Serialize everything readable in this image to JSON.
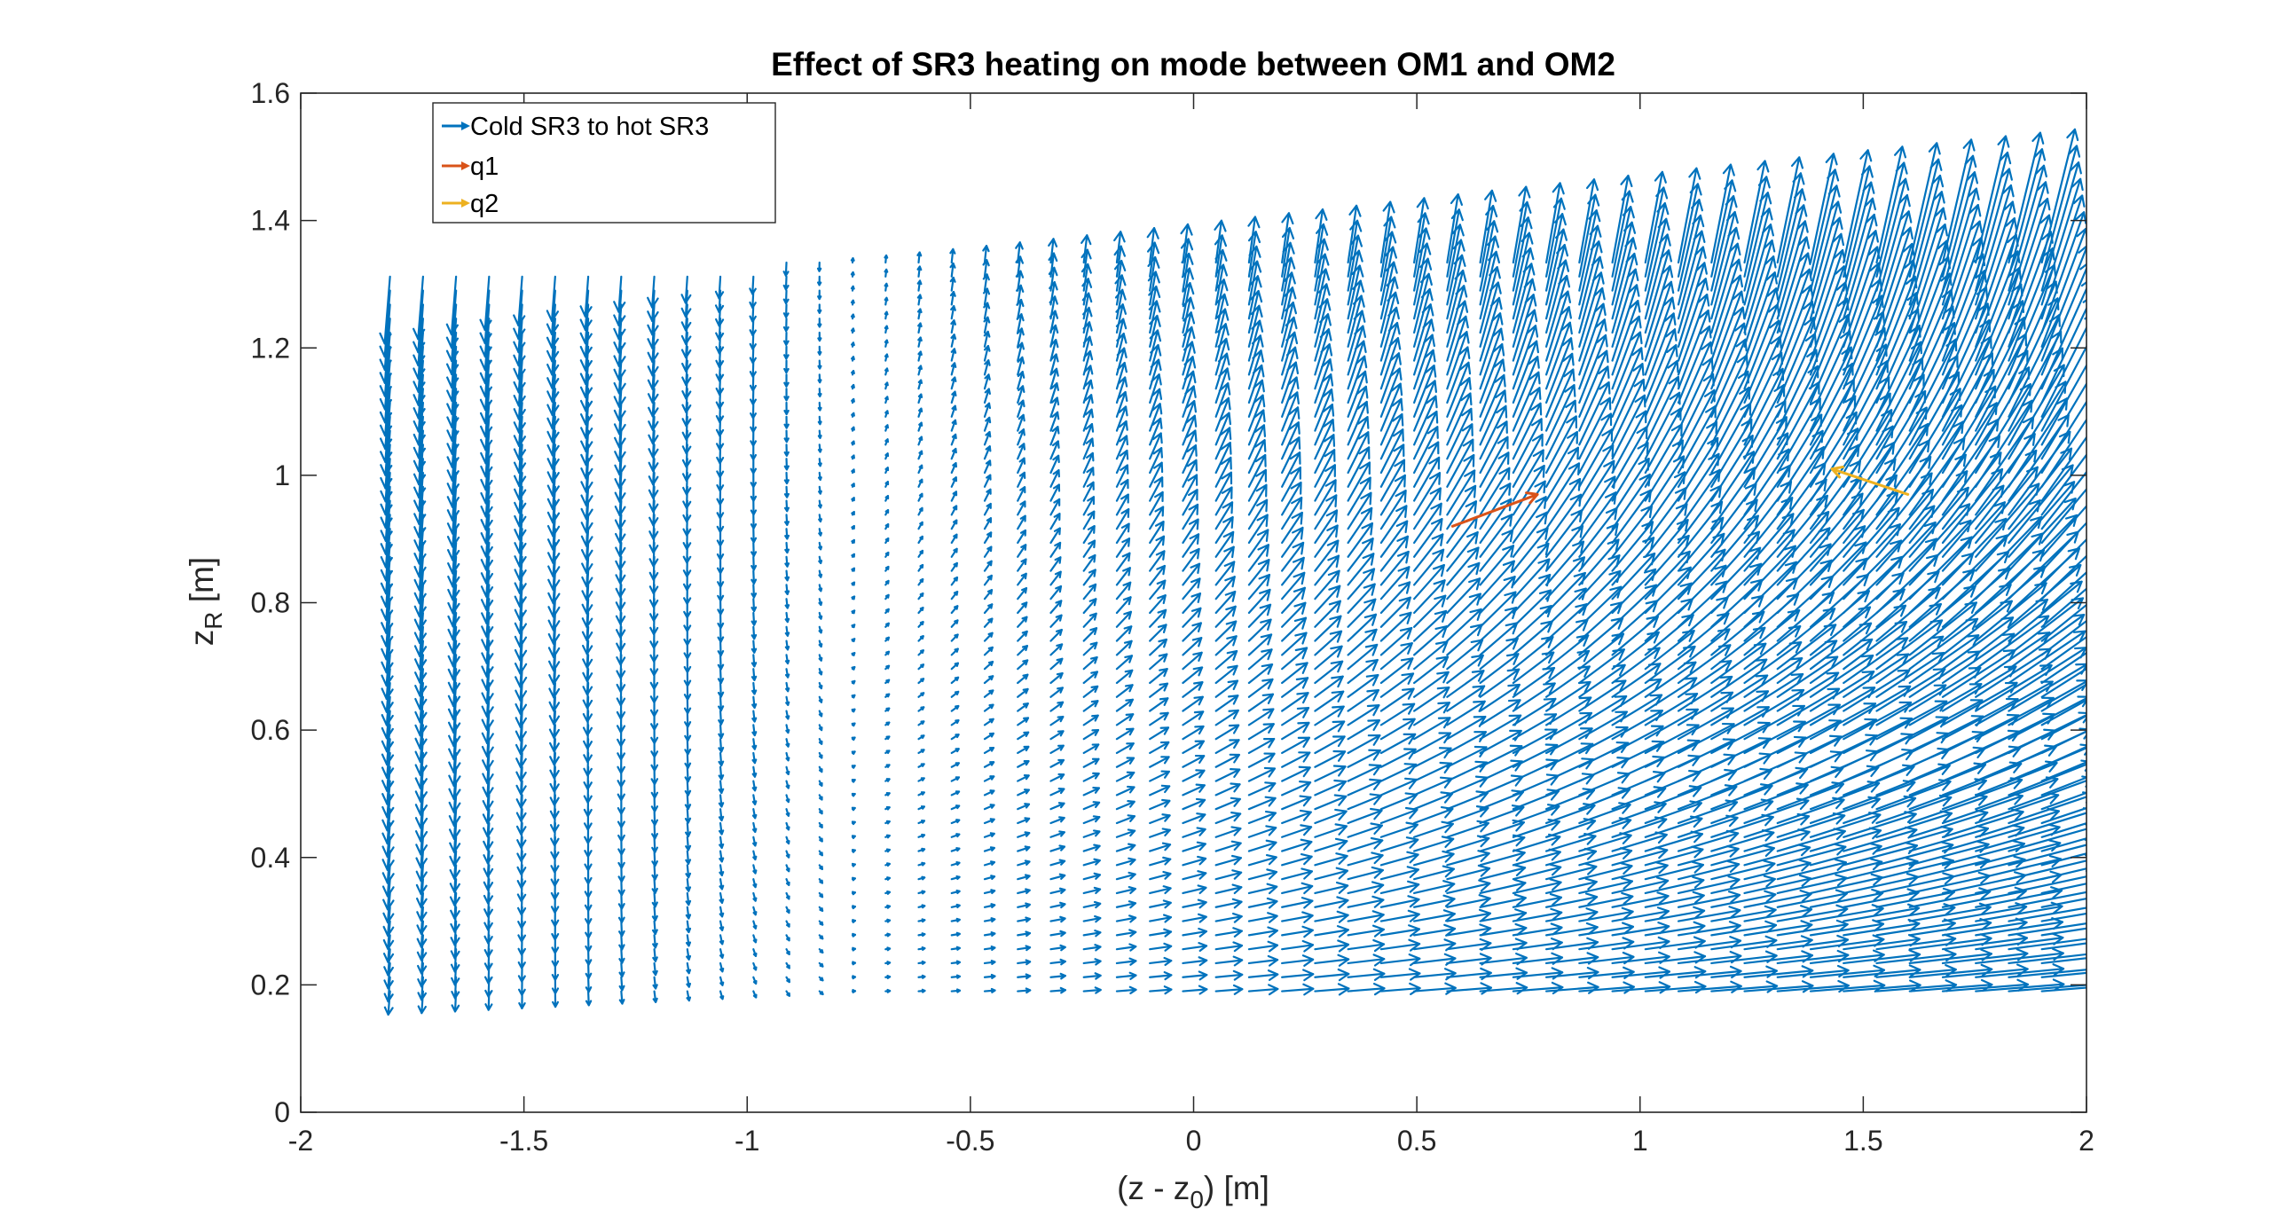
{
  "chart_data": {
    "type": "quiver",
    "title": "Effect of SR3 heating on mode between OM1 and OM2",
    "xlabel": {
      "prefix": "(z - z",
      "sub": "0",
      "suffix": ") [m]"
    },
    "ylabel": {
      "prefix": "z",
      "sub": "R",
      "suffix": " [m]"
    },
    "xlim": [
      -2,
      2
    ],
    "ylim": [
      0,
      1.6
    ],
    "xticks": [
      -2,
      -1.5,
      -1,
      -0.5,
      0,
      0.5,
      1,
      1.5,
      2
    ],
    "xtick_labels": [
      "-2",
      "-1.5",
      "-1",
      "-0.5",
      "0",
      "0.5",
      "1",
      "1.5",
      "2"
    ],
    "yticks": [
      0,
      0.2,
      0.4,
      0.6,
      0.8,
      1,
      1.2,
      1.4,
      1.6
    ],
    "ytick_labels": [
      "0",
      "0.2",
      "0.4",
      "0.6",
      "0.8",
      "1",
      "1.2",
      "1.4",
      "1.6"
    ],
    "grid": false,
    "box": true,
    "legend_location": "top-left",
    "field": {
      "name": "Cold SR3 to hot SR3",
      "color": "#0072BD",
      "x_start": -1.8,
      "x_end": 1.9,
      "x_step": 0.074,
      "y_start": 0.19,
      "y_step": 0.022,
      "rows": 53,
      "description_of_shape": "upper edge rises from ~1.31 at x=-1.8 to ~1.55 at x=1.9; vectors point downward near the left edge, nearly vanish around x=-0.8, and grow large pointing right/up on the right side"
    },
    "series": [
      {
        "name": "q1",
        "color": "#D95319",
        "start": [
          0.58,
          0.92
        ],
        "end": [
          0.77,
          0.97
        ]
      },
      {
        "name": "q2",
        "color": "#EDB120",
        "start": [
          1.6,
          0.97
        ],
        "end": [
          1.43,
          1.01
        ]
      }
    ]
  },
  "legend": {
    "items": [
      {
        "label": "Cold SR3 to hot SR3",
        "color": "#0072BD"
      },
      {
        "label": "q1",
        "color": "#D95319"
      },
      {
        "label": "q2",
        "color": "#EDB120"
      }
    ]
  }
}
